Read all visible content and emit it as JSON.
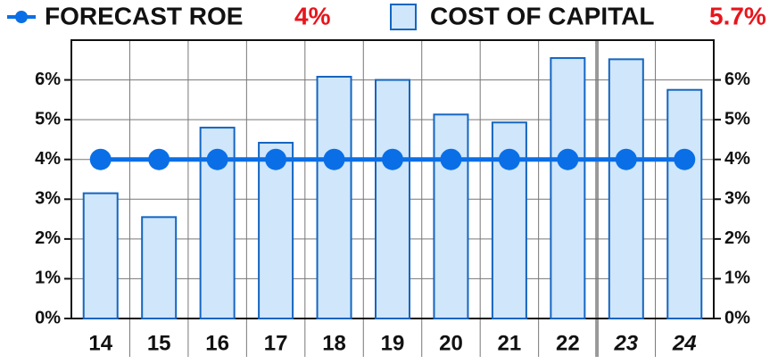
{
  "chart_data": {
    "type": "bar",
    "categories": [
      "14",
      "15",
      "16",
      "17",
      "18",
      "19",
      "20",
      "21",
      "22",
      "23",
      "24"
    ],
    "series": [
      {
        "name": "FORECAST ROE",
        "type": "line",
        "color": "#0a6fe6",
        "summary": "4%",
        "values": [
          4,
          4,
          4,
          4,
          4,
          4,
          4,
          4,
          4,
          4,
          4
        ]
      },
      {
        "name": "COST OF CAPITAL",
        "type": "bar",
        "color": "#cfe6fb",
        "summary": "5.7%",
        "values": [
          3.15,
          2.55,
          4.8,
          4.42,
          6.08,
          6.0,
          5.13,
          4.93,
          6.55,
          6.52,
          5.75
        ]
      }
    ],
    "ylim": [
      0,
      7
    ],
    "yticks": [
      {
        "value": 0,
        "label": "0%"
      },
      {
        "value": 1,
        "label": "1%"
      },
      {
        "value": 2,
        "label": "2%"
      },
      {
        "value": 3,
        "label": "3%"
      },
      {
        "value": 4,
        "label": "4%"
      },
      {
        "value": 5,
        "label": "5%"
      },
      {
        "value": 6,
        "label": "6%"
      }
    ],
    "grid": true
  }
}
